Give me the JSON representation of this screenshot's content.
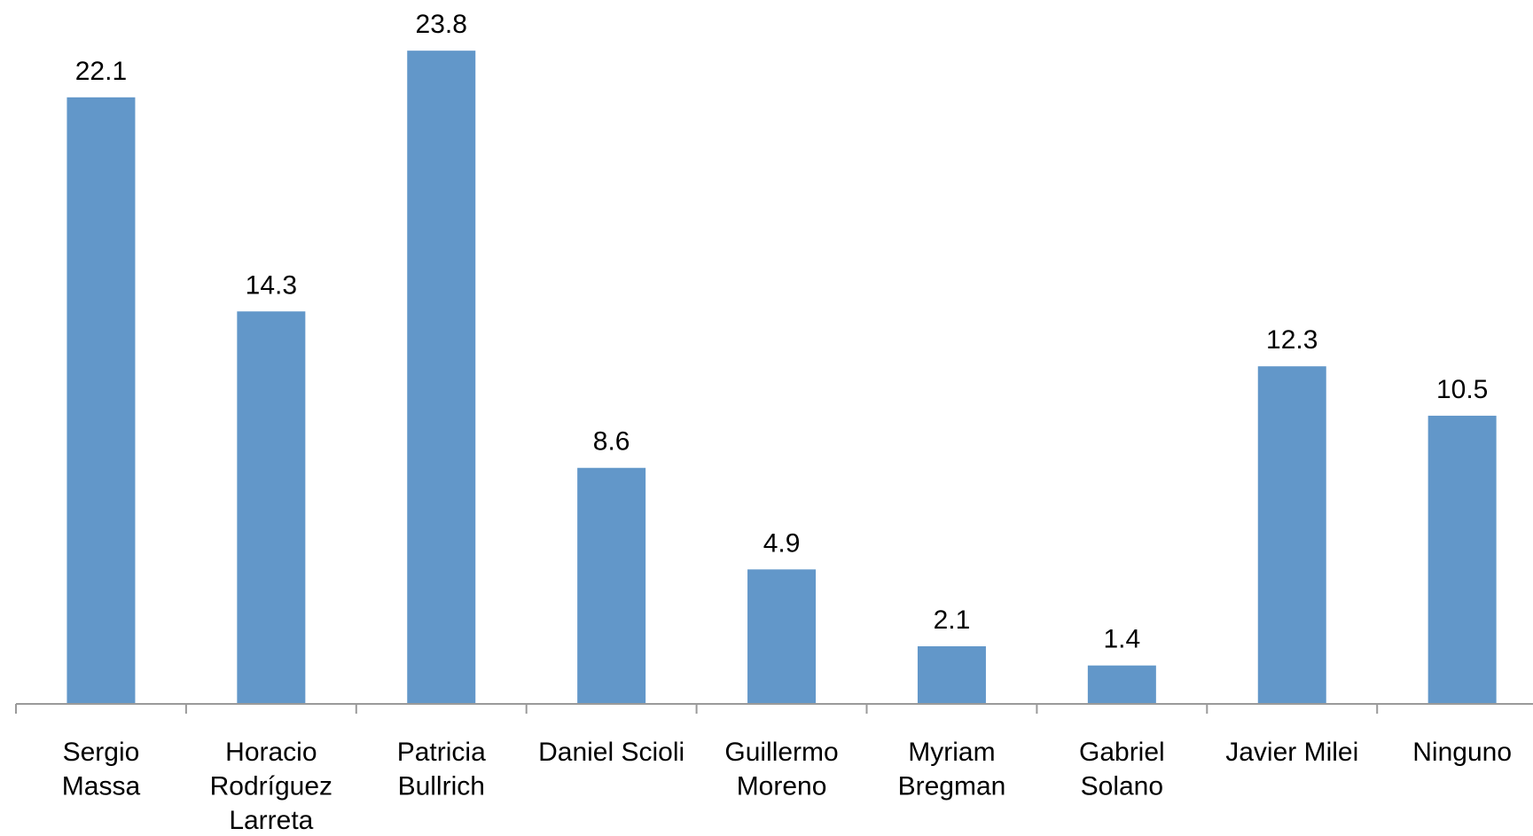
{
  "chart_data": {
    "type": "bar",
    "categories": [
      "Sergio\nMassa",
      "Horacio\nRodríguez\nLarreta",
      "Patricia\nBullrich",
      "Daniel Scioli",
      "Guillermo\nMoreno",
      "Myriam\nBregman",
      "Gabriel\nSolano",
      "Javier Milei",
      "Ninguno"
    ],
    "values": [
      22.1,
      14.3,
      23.8,
      8.6,
      4.9,
      2.1,
      1.4,
      12.3,
      10.5
    ],
    "color": "#6297c9",
    "ylim": [
      0,
      25
    ]
  }
}
